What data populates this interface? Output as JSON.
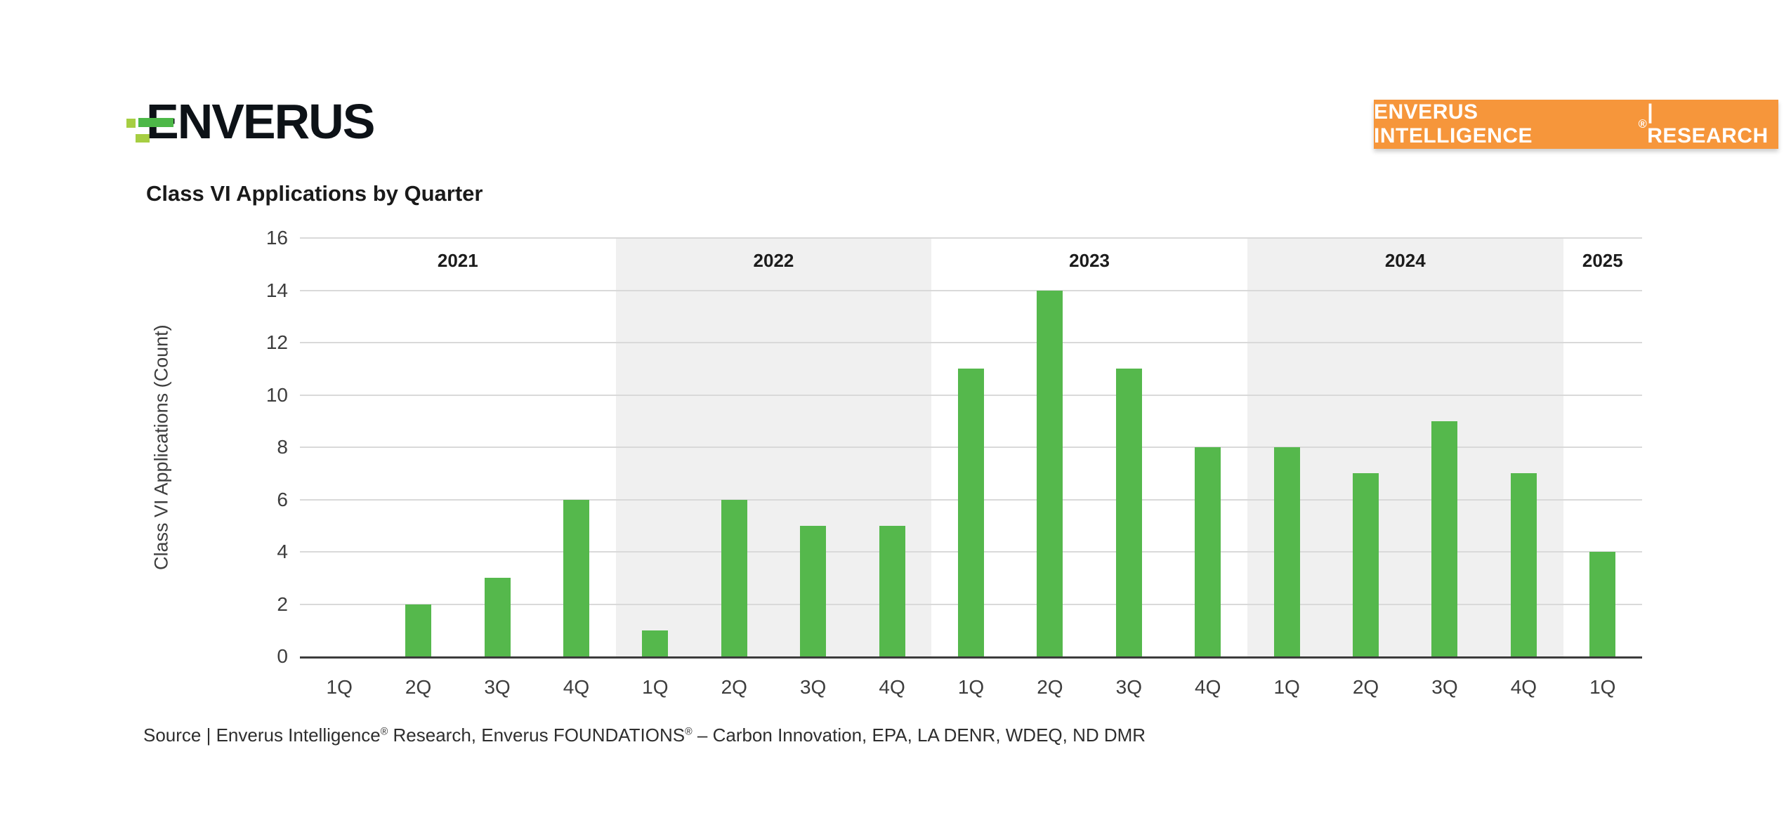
{
  "header": {
    "logo_text": "ENVERUS",
    "badge": {
      "segments": [
        {
          "text": "ENVERUS INTELLIGENCE"
        },
        {
          "sup": "®"
        },
        {
          "text": " | RESEARCH"
        }
      ],
      "bg_color": "#F6963B",
      "text_color": "#FFFFFF"
    }
  },
  "chart_data": {
    "type": "bar",
    "title": "Class VI Applications by Quarter",
    "xlabel": "",
    "ylabel": "Class VI Applications (Count)",
    "ylim": [
      0,
      16
    ],
    "ytick_step": 2,
    "grid": true,
    "legend": "none",
    "bar_color": "#55B84C",
    "band_shade_color": "#F0F0F0",
    "gridline_color": "#D9D9D9",
    "baseline_color": "#3C3C3C",
    "years": [
      {
        "year": "2021",
        "shaded": false,
        "quarters": [
          "1Q",
          "2Q",
          "3Q",
          "4Q"
        ],
        "values": [
          0,
          2,
          3,
          6
        ]
      },
      {
        "year": "2022",
        "shaded": true,
        "quarters": [
          "1Q",
          "2Q",
          "3Q",
          "4Q"
        ],
        "values": [
          1,
          6,
          5,
          5
        ]
      },
      {
        "year": "2023",
        "shaded": false,
        "quarters": [
          "1Q",
          "2Q",
          "3Q",
          "4Q"
        ],
        "values": [
          11,
          14,
          11,
          8
        ]
      },
      {
        "year": "2024",
        "shaded": true,
        "quarters": [
          "1Q",
          "2Q",
          "3Q",
          "4Q"
        ],
        "values": [
          8,
          7,
          9,
          7
        ]
      },
      {
        "year": "2025",
        "shaded": false,
        "quarters": [
          "1Q"
        ],
        "values": [
          4
        ]
      }
    ]
  },
  "source": {
    "segments": [
      {
        "text": "Source | Enverus Intelligence"
      },
      {
        "sup": "®"
      },
      {
        "text": " Research, Enverus FOUNDATIONS"
      },
      {
        "sup": "®"
      },
      {
        "text": " – Carbon Innovation, EPA, LA DENR, WDEQ, ND DMR"
      }
    ]
  }
}
